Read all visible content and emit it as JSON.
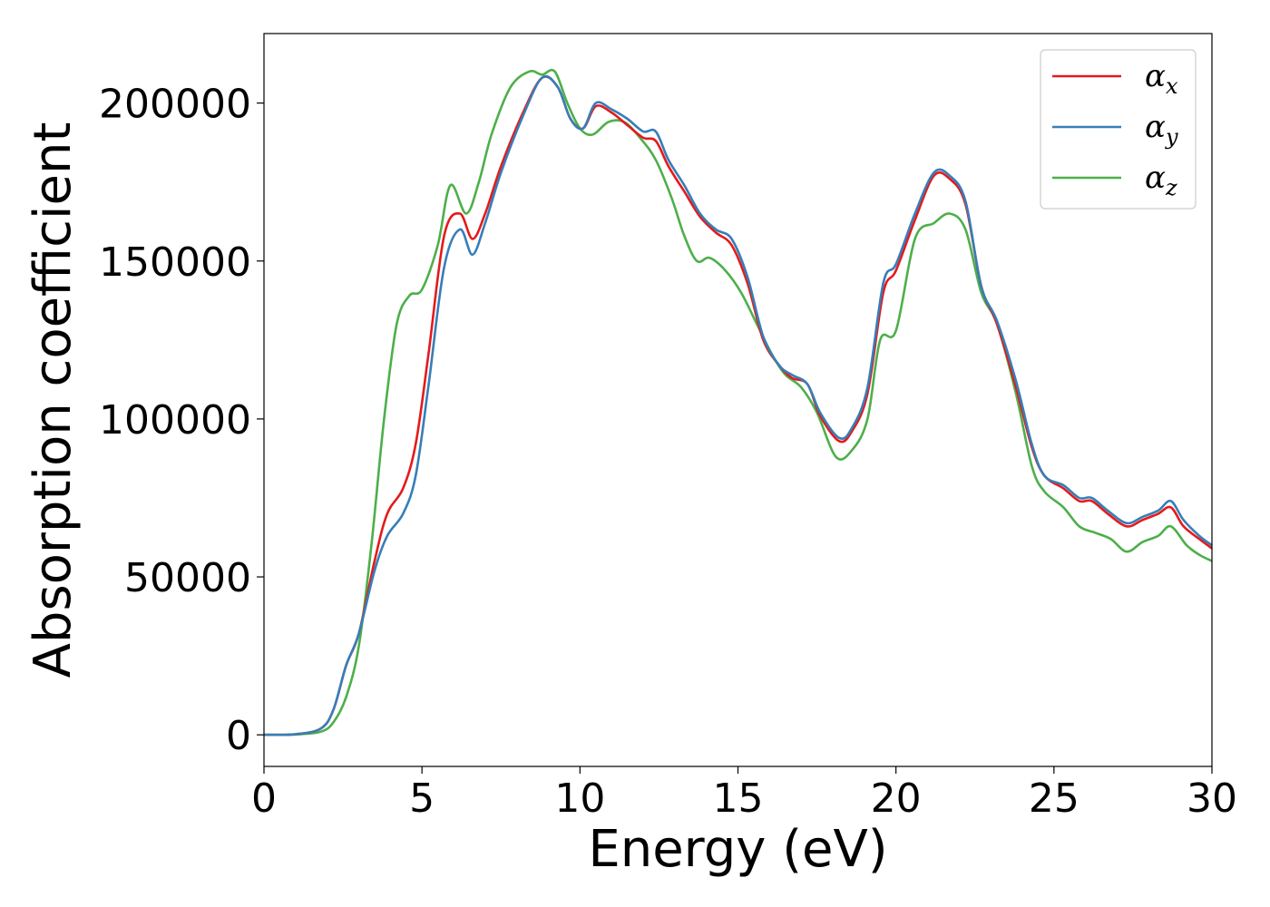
{
  "chart_data": {
    "type": "line",
    "xlabel": "Energy (eV)",
    "ylabel": "Absorption coefficient",
    "xlim": [
      0,
      30
    ],
    "ylim": [
      -10000,
      222000
    ],
    "xticks": [
      0,
      5,
      10,
      15,
      20,
      25,
      30
    ],
    "xtick_labels": [
      "0",
      "5",
      "10",
      "15",
      "20",
      "25",
      "30"
    ],
    "yticks": [
      0,
      50000,
      100000,
      150000,
      200000
    ],
    "ytick_labels": [
      "0",
      "50000",
      "100000",
      "150000",
      "200000"
    ],
    "grid": false,
    "legend_position": "top-right",
    "series": [
      {
        "name": "αx",
        "name_base": "α",
        "name_sub": "x",
        "color": "#e41a1c",
        "points": [
          [
            0,
            0
          ],
          [
            1,
            200
          ],
          [
            1.8,
            2000
          ],
          [
            2.2,
            8000
          ],
          [
            2.6,
            22000
          ],
          [
            3,
            32000
          ],
          [
            3.5,
            55000
          ],
          [
            3.9,
            70000
          ],
          [
            4.4,
            78000
          ],
          [
            4.8,
            92000
          ],
          [
            5.2,
            120000
          ],
          [
            5.7,
            158000
          ],
          [
            6.2,
            165000
          ],
          [
            6.6,
            157000
          ],
          [
            7,
            165000
          ],
          [
            7.5,
            180000
          ],
          [
            8.2,
            197000
          ],
          [
            8.8,
            208000
          ],
          [
            9.3,
            205000
          ],
          [
            9.7,
            195000
          ],
          [
            10.1,
            192000
          ],
          [
            10.5,
            199000
          ],
          [
            11,
            197000
          ],
          [
            11.5,
            193000
          ],
          [
            12,
            189000
          ],
          [
            12.4,
            188000
          ],
          [
            12.8,
            180000
          ],
          [
            13.3,
            172000
          ],
          [
            13.8,
            164000
          ],
          [
            14.3,
            159000
          ],
          [
            14.8,
            155000
          ],
          [
            15.3,
            143000
          ],
          [
            15.8,
            125000
          ],
          [
            16.3,
            117000
          ],
          [
            16.7,
            113000
          ],
          [
            17.2,
            111000
          ],
          [
            17.6,
            101000
          ],
          [
            18.2,
            93000
          ],
          [
            18.6,
            96000
          ],
          [
            19.1,
            108000
          ],
          [
            19.6,
            140000
          ],
          [
            20,
            147000
          ],
          [
            20.6,
            163000
          ],
          [
            21.2,
            177000
          ],
          [
            21.7,
            176000
          ],
          [
            22.2,
            168000
          ],
          [
            22.7,
            142000
          ],
          [
            23.2,
            130000
          ],
          [
            23.8,
            110000
          ],
          [
            24.3,
            91000
          ],
          [
            24.7,
            82000
          ],
          [
            25.3,
            78000
          ],
          [
            25.8,
            74000
          ],
          [
            26.2,
            74000
          ],
          [
            26.7,
            70000
          ],
          [
            27.3,
            66000
          ],
          [
            27.8,
            68000
          ],
          [
            28.3,
            70000
          ],
          [
            28.7,
            72000
          ],
          [
            29.1,
            66000
          ],
          [
            29.6,
            62000
          ],
          [
            30,
            59000
          ]
        ]
      },
      {
        "name": "αy",
        "name_base": "α",
        "name_sub": "y",
        "color": "#377eb8",
        "points": [
          [
            0,
            0
          ],
          [
            1,
            200
          ],
          [
            1.8,
            2000
          ],
          [
            2.2,
            8000
          ],
          [
            2.6,
            22000
          ],
          [
            3,
            32000
          ],
          [
            3.5,
            52000
          ],
          [
            3.9,
            63000
          ],
          [
            4.4,
            70000
          ],
          [
            4.8,
            82000
          ],
          [
            5.2,
            110000
          ],
          [
            5.7,
            148000
          ],
          [
            6.2,
            160000
          ],
          [
            6.6,
            152000
          ],
          [
            7,
            162000
          ],
          [
            7.5,
            178000
          ],
          [
            8.2,
            196000
          ],
          [
            8.8,
            208000
          ],
          [
            9.3,
            205000
          ],
          [
            9.7,
            195000
          ],
          [
            10.1,
            192000
          ],
          [
            10.5,
            200000
          ],
          [
            11,
            198000
          ],
          [
            11.5,
            195000
          ],
          [
            12,
            191000
          ],
          [
            12.4,
            191000
          ],
          [
            12.8,
            182000
          ],
          [
            13.3,
            174000
          ],
          [
            13.8,
            165000
          ],
          [
            14.3,
            160000
          ],
          [
            14.8,
            157000
          ],
          [
            15.3,
            145000
          ],
          [
            15.8,
            126000
          ],
          [
            16.3,
            117000
          ],
          [
            16.7,
            114000
          ],
          [
            17.2,
            111000
          ],
          [
            17.6,
            102000
          ],
          [
            18.2,
            94000
          ],
          [
            18.6,
            97000
          ],
          [
            19.1,
            110000
          ],
          [
            19.6,
            143000
          ],
          [
            20,
            149000
          ],
          [
            20.6,
            165000
          ],
          [
            21.2,
            178000
          ],
          [
            21.7,
            177000
          ],
          [
            22.2,
            169000
          ],
          [
            22.7,
            142000
          ],
          [
            23.2,
            131000
          ],
          [
            23.8,
            112000
          ],
          [
            24.3,
            92000
          ],
          [
            24.7,
            82000
          ],
          [
            25.3,
            79000
          ],
          [
            25.8,
            75000
          ],
          [
            26.2,
            75000
          ],
          [
            26.7,
            71000
          ],
          [
            27.3,
            67000
          ],
          [
            27.8,
            69000
          ],
          [
            28.3,
            71000
          ],
          [
            28.7,
            74000
          ],
          [
            29.1,
            68000
          ],
          [
            29.6,
            63000
          ],
          [
            30,
            60000
          ]
        ]
      },
      {
        "name": "αz",
        "name_base": "α",
        "name_sub": "z",
        "color": "#4daf4a",
        "points": [
          [
            0,
            0
          ],
          [
            1,
            100
          ],
          [
            1.8,
            1000
          ],
          [
            2.2,
            4000
          ],
          [
            2.6,
            12000
          ],
          [
            3,
            28000
          ],
          [
            3.4,
            60000
          ],
          [
            3.8,
            100000
          ],
          [
            4.2,
            130000
          ],
          [
            4.6,
            139000
          ],
          [
            5,
            141000
          ],
          [
            5.5,
            155000
          ],
          [
            5.9,
            174000
          ],
          [
            6.4,
            165000
          ],
          [
            6.8,
            175000
          ],
          [
            7.2,
            190000
          ],
          [
            7.8,
            205000
          ],
          [
            8.4,
            210000
          ],
          [
            8.8,
            209000
          ],
          [
            9.2,
            210000
          ],
          [
            9.6,
            200000
          ],
          [
            10,
            192000
          ],
          [
            10.4,
            190000
          ],
          [
            10.9,
            194000
          ],
          [
            11.4,
            194000
          ],
          [
            11.9,
            189000
          ],
          [
            12.4,
            182000
          ],
          [
            12.9,
            170000
          ],
          [
            13.3,
            158000
          ],
          [
            13.7,
            150000
          ],
          [
            14.1,
            151000
          ],
          [
            14.6,
            147000
          ],
          [
            15.1,
            140000
          ],
          [
            15.6,
            130000
          ],
          [
            16.1,
            120000
          ],
          [
            16.5,
            114000
          ],
          [
            17,
            110000
          ],
          [
            17.5,
            102000
          ],
          [
            18.1,
            88000
          ],
          [
            18.6,
            90000
          ],
          [
            19.1,
            100000
          ],
          [
            19.5,
            125000
          ],
          [
            20,
            128000
          ],
          [
            20.6,
            157000
          ],
          [
            21.2,
            162000
          ],
          [
            21.7,
            165000
          ],
          [
            22.2,
            160000
          ],
          [
            22.7,
            140000
          ],
          [
            23.2,
            130000
          ],
          [
            23.8,
            108000
          ],
          [
            24.3,
            85000
          ],
          [
            24.7,
            77000
          ],
          [
            25.3,
            72000
          ],
          [
            25.8,
            66000
          ],
          [
            26.3,
            64000
          ],
          [
            26.8,
            62000
          ],
          [
            27.3,
            58000
          ],
          [
            27.8,
            61000
          ],
          [
            28.3,
            63000
          ],
          [
            28.7,
            66000
          ],
          [
            29.2,
            60000
          ],
          [
            29.6,
            57000
          ],
          [
            30,
            55000
          ]
        ]
      }
    ]
  }
}
